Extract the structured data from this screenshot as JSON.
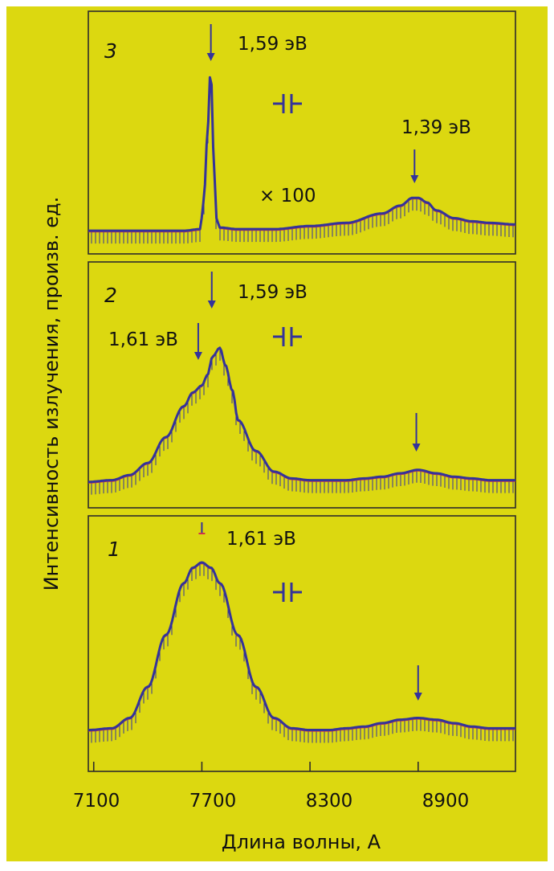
{
  "colors": {
    "background": "#dcd810",
    "frame": "#2e2b2b",
    "curve": "#34339a",
    "curve_highlight": "#d0304a"
  },
  "chart_data": {
    "type": "line",
    "xlabel": "Длина волны, А",
    "ylabel": "Интенсивность излучения, произв. ед.",
    "x_ticks": [
      "7100",
      "7700",
      "8300",
      "8900"
    ],
    "xlim": [
      7070,
      9440
    ],
    "grid": false,
    "panels": [
      {
        "label": "3",
        "annotations": [
          "1,59 эВ",
          "1,39 эВ",
          "× 100"
        ],
        "arrow_x": [
          7750,
          8880
        ],
        "capacitor_icon": true,
        "series": [
          {
            "x": [
              7070,
              7200,
              7400,
              7600,
              7690,
              7710,
              7730,
              7745,
              7755,
              7765,
              7780,
              7800,
              7900,
              8100,
              8300,
              8500,
              8700,
              8800,
              8870,
              8900,
              8950,
              9000,
              9100,
              9200,
              9300,
              9440
            ],
            "y": [
              0.02,
              0.02,
              0.02,
              0.02,
              0.03,
              0.2,
              0.6,
              1.0,
              0.95,
              0.5,
              0.1,
              0.04,
              0.03,
              0.03,
              0.05,
              0.07,
              0.13,
              0.18,
              0.23,
              0.23,
              0.2,
              0.15,
              0.1,
              0.08,
              0.07,
              0.06
            ]
          }
        ]
      },
      {
        "label": "2",
        "annotations": [
          "1,61 эВ",
          "1,59 эВ"
        ],
        "arrow_x": [
          7680,
          7755,
          8890
        ],
        "capacitor_icon": true,
        "series": [
          {
            "x": [
              7070,
              7200,
              7300,
              7400,
              7500,
              7600,
              7650,
              7700,
              7730,
              7760,
              7800,
              7830,
              7870,
              7900,
              8000,
              8100,
              8200,
              8300,
              8400,
              8500,
              8600,
              8700,
              8800,
              8900,
              9000,
              9100,
              9200,
              9300,
              9440
            ],
            "y": [
              0.02,
              0.03,
              0.06,
              0.13,
              0.28,
              0.46,
              0.54,
              0.58,
              0.64,
              0.75,
              0.8,
              0.7,
              0.55,
              0.38,
              0.2,
              0.08,
              0.04,
              0.03,
              0.03,
              0.03,
              0.04,
              0.05,
              0.07,
              0.09,
              0.07,
              0.05,
              0.04,
              0.03,
              0.03
            ]
          }
        ]
      },
      {
        "label": "1",
        "annotations": [
          "1,61 эВ"
        ],
        "arrow_x": [
          7700,
          8900
        ],
        "capacitor_icon": true,
        "series": [
          {
            "x": [
              7070,
              7200,
              7300,
              7400,
              7500,
              7600,
              7650,
              7700,
              7750,
              7800,
              7900,
              8000,
              8100,
              8200,
              8300,
              8400,
              8500,
              8600,
              8700,
              8800,
              8900,
              9000,
              9100,
              9200,
              9300,
              9440
            ],
            "y": [
              0.03,
              0.04,
              0.1,
              0.28,
              0.58,
              0.88,
              0.97,
              1.0,
              0.97,
              0.88,
              0.58,
              0.28,
              0.1,
              0.04,
              0.03,
              0.03,
              0.04,
              0.05,
              0.07,
              0.09,
              0.1,
              0.09,
              0.07,
              0.05,
              0.04,
              0.04
            ]
          }
        ]
      }
    ]
  }
}
